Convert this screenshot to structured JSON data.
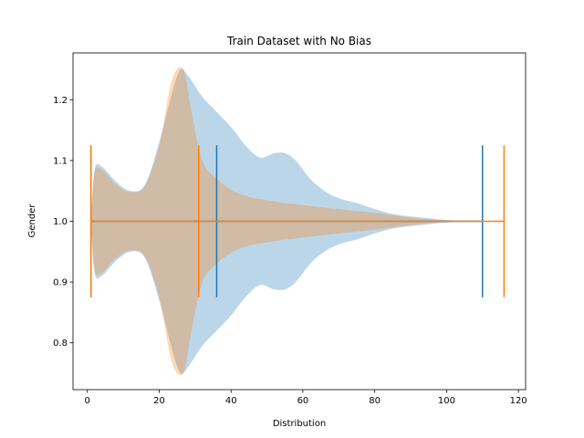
{
  "chart_data": {
    "type": "violin",
    "title": "Train Dataset with No Bias",
    "xlabel": "Distribution",
    "ylabel": "Gender",
    "xlim": [
      -4,
      122
    ],
    "ylim": [
      0.723,
      1.277
    ],
    "xticks": [
      0,
      20,
      40,
      60,
      80,
      100,
      120
    ],
    "xtick_labels": [
      "0",
      "20",
      "40",
      "60",
      "80",
      "100",
      "120"
    ],
    "yticks": [
      0.8,
      0.9,
      1.0,
      1.1,
      1.2
    ],
    "ytick_labels": [
      "0.8",
      "0.9",
      "1.0",
      "1.1",
      "1.2"
    ],
    "position": 1.0,
    "series": [
      {
        "color": "#1f77b4",
        "fill_opacity": 0.3,
        "min": 1,
        "max": 110,
        "mean": 36,
        "profile": [
          [
            1,
            0.0
          ],
          [
            2,
            0.085
          ],
          [
            4,
            0.09
          ],
          [
            8,
            0.065
          ],
          [
            12,
            0.05
          ],
          [
            16,
            0.06
          ],
          [
            20,
            0.13
          ],
          [
            24,
            0.22
          ],
          [
            26,
            0.25
          ],
          [
            28,
            0.24
          ],
          [
            32,
            0.205
          ],
          [
            36,
            0.18
          ],
          [
            40,
            0.155
          ],
          [
            44,
            0.125
          ],
          [
            48,
            0.105
          ],
          [
            52,
            0.112
          ],
          [
            55,
            0.112
          ],
          [
            58,
            0.1
          ],
          [
            62,
            0.07
          ],
          [
            66,
            0.05
          ],
          [
            70,
            0.038
          ],
          [
            75,
            0.03
          ],
          [
            80,
            0.02
          ],
          [
            85,
            0.012
          ],
          [
            90,
            0.008
          ],
          [
            95,
            0.005
          ],
          [
            100,
            0.002
          ],
          [
            105,
            0.001
          ],
          [
            110,
            0.0
          ]
        ]
      },
      {
        "color": "#ff7f0e",
        "fill_opacity": 0.3,
        "min": 1,
        "max": 116,
        "mean": 31,
        "profile": [
          [
            1,
            0.0
          ],
          [
            2,
            0.08
          ],
          [
            4,
            0.085
          ],
          [
            8,
            0.06
          ],
          [
            12,
            0.048
          ],
          [
            16,
            0.058
          ],
          [
            20,
            0.125
          ],
          [
            23,
            0.22
          ],
          [
            25,
            0.25
          ],
          [
            27,
            0.245
          ],
          [
            29,
            0.18
          ],
          [
            32,
            0.1
          ],
          [
            36,
            0.07
          ],
          [
            40,
            0.052
          ],
          [
            45,
            0.04
          ],
          [
            50,
            0.035
          ],
          [
            55,
            0.03
          ],
          [
            60,
            0.027
          ],
          [
            65,
            0.023
          ],
          [
            70,
            0.02
          ],
          [
            75,
            0.017
          ],
          [
            80,
            0.014
          ],
          [
            85,
            0.01
          ],
          [
            90,
            0.006
          ],
          [
            95,
            0.003
          ],
          [
            100,
            0.001
          ],
          [
            105,
            0.0005
          ],
          [
            116,
            0.0
          ]
        ]
      }
    ]
  }
}
